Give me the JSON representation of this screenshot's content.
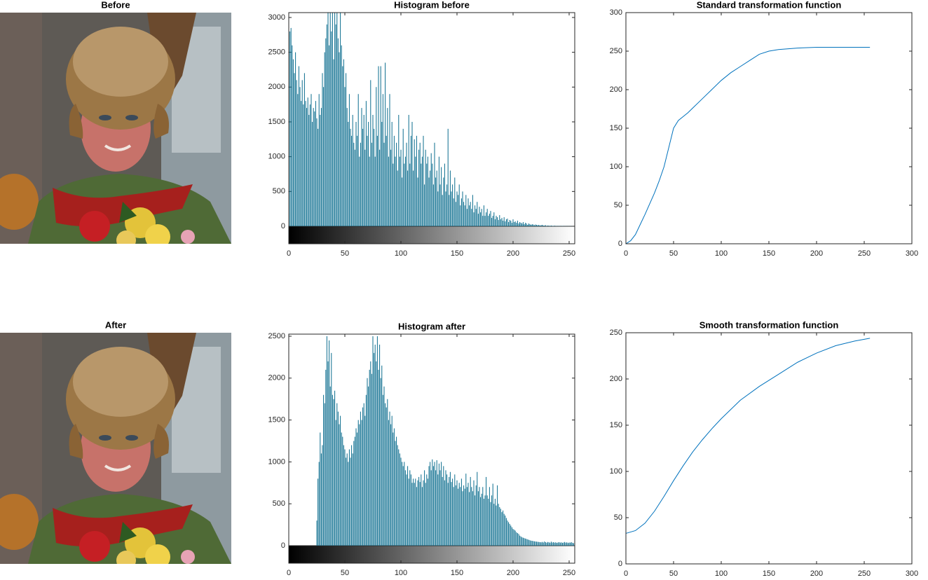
{
  "chart_data": [
    {
      "type": "image",
      "title": "Before"
    },
    {
      "type": "stem",
      "title": "Histogram before",
      "color": "#0b6d8e",
      "x": [
        0,
        1,
        2,
        3,
        4,
        5,
        6,
        7,
        8,
        9,
        10,
        11,
        12,
        13,
        14,
        15,
        16,
        17,
        18,
        19,
        20,
        21,
        22,
        23,
        24,
        25,
        26,
        27,
        28,
        29,
        30,
        31,
        32,
        33,
        34,
        35,
        36,
        37,
        38,
        39,
        40,
        41,
        42,
        43,
        44,
        45,
        46,
        47,
        48,
        49,
        50,
        51,
        52,
        53,
        54,
        55,
        56,
        57,
        58,
        59,
        60,
        61,
        62,
        63,
        64,
        65,
        66,
        67,
        68,
        69,
        70,
        71,
        72,
        73,
        74,
        75,
        76,
        77,
        78,
        79,
        80,
        81,
        82,
        83,
        84,
        85,
        86,
        87,
        88,
        89,
        90,
        91,
        92,
        93,
        94,
        95,
        96,
        97,
        98,
        99,
        100,
        101,
        102,
        103,
        104,
        105,
        106,
        107,
        108,
        109,
        110,
        111,
        112,
        113,
        114,
        115,
        116,
        117,
        118,
        119,
        120,
        121,
        122,
        123,
        124,
        125,
        126,
        127,
        128,
        129,
        130,
        131,
        132,
        133,
        134,
        135,
        136,
        137,
        138,
        139,
        140,
        141,
        142,
        143,
        144,
        145,
        146,
        147,
        148,
        149,
        150,
        151,
        152,
        153,
        154,
        155,
        156,
        157,
        158,
        159,
        160,
        161,
        162,
        163,
        164,
        165,
        166,
        167,
        168,
        169,
        170,
        171,
        172,
        173,
        174,
        175,
        176,
        177,
        178,
        179,
        180,
        181,
        182,
        183,
        184,
        185,
        186,
        187,
        188,
        189,
        190,
        191,
        192,
        193,
        194,
        195,
        196,
        197,
        198,
        199,
        200,
        201,
        202,
        203,
        204,
        205,
        206,
        207,
        208,
        209,
        210,
        211,
        212,
        213,
        214,
        215,
        216,
        217,
        218,
        219,
        220,
        221,
        222,
        223,
        224,
        225,
        226,
        227,
        228,
        229,
        230,
        231,
        232,
        233,
        234,
        235,
        236,
        237,
        238,
        239,
        240,
        241,
        242,
        243,
        244,
        245,
        246,
        247,
        248,
        249,
        250,
        251,
        252,
        253,
        254,
        255
      ],
      "values": [
        2950,
        2800,
        2850,
        2600,
        2400,
        2200,
        2500,
        2100,
        1900,
        2300,
        2000,
        1800,
        2100,
        1750,
        2200,
        1800,
        1700,
        1850,
        1600,
        1750,
        1900,
        1500,
        1700,
        1650,
        1800,
        1550,
        1400,
        1900,
        1600,
        1700,
        2200,
        2000,
        2500,
        2700,
        2900,
        3070,
        2600,
        3070,
        2800,
        3070,
        2400,
        3070,
        2900,
        3070,
        2700,
        2500,
        3070,
        2600,
        2300,
        2400,
        2000,
        2200,
        1700,
        1500,
        1900,
        1400,
        1300,
        1600,
        1200,
        1100,
        1500,
        1300,
        1900,
        1000,
        1200,
        1700,
        1400,
        1600,
        1100,
        1800,
        1300,
        1500,
        1000,
        2100,
        1200,
        1600,
        1400,
        1000,
        2000,
        1300,
        2300,
        1100,
        2300,
        1500,
        1900,
        1200,
        2350,
        1300,
        1700,
        1000,
        1900,
        1100,
        1500,
        900,
        1300,
        1000,
        1200,
        800,
        1600,
        1000,
        1100,
        700,
        1400,
        900,
        1000,
        1200,
        800,
        1600,
        900,
        1300,
        1500,
        800,
        1250,
        1000,
        1300,
        700,
        1100,
        1200,
        900,
        1000,
        1300,
        600,
        1100,
        900,
        1000,
        700,
        800,
        1050,
        900,
        600,
        1200,
        700,
        800,
        500,
        1000,
        600,
        850,
        450,
        700,
        900,
        500,
        600,
        1400,
        450,
        800,
        500,
        600,
        400,
        700,
        350,
        500,
        450,
        600,
        300,
        400,
        500,
        350,
        300,
        450,
        250,
        400,
        300,
        350,
        250,
        450,
        200,
        300,
        250,
        350,
        180,
        280,
        200,
        250,
        150,
        300,
        150,
        200,
        250,
        150,
        180,
        220,
        120,
        150,
        200,
        100,
        150,
        130,
        90,
        160,
        100,
        120,
        80,
        130,
        70,
        100,
        110,
        60,
        90,
        80,
        50,
        100,
        60,
        70,
        50,
        80,
        40,
        60,
        50,
        40,
        60,
        30,
        50,
        40,
        20,
        40,
        30,
        20,
        30,
        25,
        15,
        25,
        20,
        15,
        20,
        10,
        15,
        20,
        10,
        10,
        15,
        5,
        10,
        8,
        5,
        10,
        5,
        5,
        8,
        3,
        5,
        3,
        5,
        2,
        3,
        4,
        2,
        2,
        3,
        1,
        2,
        1,
        2,
        1,
        1,
        0,
        0
      ],
      "xlim": [
        0,
        255
      ],
      "xticks": [
        0,
        50,
        100,
        150,
        200,
        250
      ],
      "ylim": [
        0,
        3070
      ],
      "yticks": [
        0,
        500,
        1000,
        1500,
        2000,
        2500,
        3000
      ]
    },
    {
      "type": "line",
      "title": "Standard transformation function",
      "color": "#0072bd",
      "x": [
        0,
        5,
        10,
        15,
        20,
        25,
        30,
        35,
        40,
        45,
        50,
        55,
        60,
        65,
        70,
        80,
        90,
        100,
        110,
        120,
        130,
        140,
        150,
        160,
        180,
        200,
        220,
        240,
        256
      ],
      "values": [
        0,
        4,
        12,
        25,
        38,
        52,
        66,
        82,
        100,
        125,
        150,
        160,
        165,
        170,
        176,
        188,
        200,
        212,
        222,
        230,
        238,
        246,
        250,
        252,
        254,
        255,
        255,
        255,
        255
      ],
      "xlim": [
        0,
        300
      ],
      "xticks": [
        0,
        50,
        100,
        150,
        200,
        250,
        300
      ],
      "ylim": [
        0,
        300
      ],
      "yticks": [
        0,
        50,
        100,
        150,
        200,
        250,
        300
      ]
    },
    {
      "type": "image",
      "title": "After"
    },
    {
      "type": "stem",
      "title": "Histogram after",
      "color": "#0b6d8e",
      "x": [
        0,
        1,
        2,
        3,
        4,
        5,
        6,
        7,
        8,
        9,
        10,
        11,
        12,
        13,
        14,
        15,
        16,
        17,
        18,
        19,
        20,
        21,
        22,
        23,
        24,
        25,
        26,
        27,
        28,
        29,
        30,
        31,
        32,
        33,
        34,
        35,
        36,
        37,
        38,
        39,
        40,
        41,
        42,
        43,
        44,
        45,
        46,
        47,
        48,
        49,
        50,
        51,
        52,
        53,
        54,
        55,
        56,
        57,
        58,
        59,
        60,
        61,
        62,
        63,
        64,
        65,
        66,
        67,
        68,
        69,
        70,
        71,
        72,
        73,
        74,
        75,
        76,
        77,
        78,
        79,
        80,
        81,
        82,
        83,
        84,
        85,
        86,
        87,
        88,
        89,
        90,
        91,
        92,
        93,
        94,
        95,
        96,
        97,
        98,
        99,
        100,
        101,
        102,
        103,
        104,
        105,
        106,
        107,
        108,
        109,
        110,
        111,
        112,
        113,
        114,
        115,
        116,
        117,
        118,
        119,
        120,
        121,
        122,
        123,
        124,
        125,
        126,
        127,
        128,
        129,
        130,
        131,
        132,
        133,
        134,
        135,
        136,
        137,
        138,
        139,
        140,
        141,
        142,
        143,
        144,
        145,
        146,
        147,
        148,
        149,
        150,
        151,
        152,
        153,
        154,
        155,
        156,
        157,
        158,
        159,
        160,
        161,
        162,
        163,
        164,
        165,
        166,
        167,
        168,
        169,
        170,
        171,
        172,
        173,
        174,
        175,
        176,
        177,
        178,
        179,
        180,
        181,
        182,
        183,
        184,
        185,
        186,
        187,
        188,
        189,
        190,
        191,
        192,
        193,
        194,
        195,
        196,
        197,
        198,
        199,
        200,
        201,
        202,
        203,
        204,
        205,
        206,
        207,
        208,
        209,
        210,
        211,
        212,
        213,
        214,
        215,
        216,
        217,
        218,
        219,
        220,
        221,
        222,
        223,
        224,
        225,
        226,
        227,
        228,
        229,
        230,
        231,
        232,
        233,
        234,
        235,
        236,
        237,
        238,
        239,
        240,
        241,
        242,
        243,
        244,
        245,
        246,
        247,
        248,
        249,
        250,
        251,
        252,
        253,
        254,
        255
      ],
      "values": [
        0,
        0,
        0,
        0,
        0,
        0,
        0,
        0,
        0,
        0,
        0,
        0,
        0,
        0,
        0,
        0,
        0,
        0,
        0,
        0,
        0,
        0,
        0,
        0,
        0,
        300,
        800,
        1000,
        1350,
        1100,
        1200,
        1800,
        1700,
        2100,
        2500,
        2200,
        2450,
        1900,
        2300,
        1800,
        1750,
        1850,
        1500,
        1700,
        1600,
        1450,
        1550,
        1350,
        1300,
        1200,
        1150,
        1050,
        1100,
        1000,
        1150,
        1050,
        1200,
        1100,
        1250,
        1300,
        1400,
        1350,
        1500,
        1450,
        1600,
        1500,
        1650,
        1700,
        1550,
        1800,
        2000,
        1900,
        2100,
        2200,
        2050,
        2500,
        2300,
        2400,
        2200,
        2500,
        2100,
        2400,
        2000,
        2150,
        1800,
        1900,
        1700,
        1650,
        1750,
        1500,
        1600,
        1450,
        1550,
        1350,
        1400,
        1250,
        1300,
        1200,
        1150,
        1100,
        1050,
        1000,
        950,
        1000,
        900,
        850,
        950,
        800,
        900,
        850,
        750,
        800,
        750,
        800,
        700,
        780,
        820,
        760,
        850,
        700,
        780,
        900,
        750,
        850,
        800,
        950,
        1000,
        900,
        1030,
        950,
        1000,
        900,
        1020,
        850,
        980,
        900,
        1000,
        820,
        950,
        780,
        900,
        850,
        750,
        820,
        880,
        760,
        800,
        700,
        850,
        720,
        780,
        680,
        750,
        700,
        800,
        650,
        720,
        680,
        860,
        700,
        750,
        640,
        820,
        700,
        650,
        780,
        600,
        720,
        880,
        650,
        700,
        580,
        620,
        700,
        560,
        600,
        820,
        600,
        560,
        700,
        520,
        600,
        740,
        500,
        560,
        480,
        720,
        500,
        460,
        440,
        400,
        420,
        380,
        360,
        330,
        300,
        280,
        260,
        240,
        220,
        200,
        190,
        180,
        160,
        150,
        140,
        120,
        110,
        100,
        95,
        90,
        85,
        80,
        75,
        70,
        65,
        60,
        58,
        55,
        52,
        50,
        48,
        46,
        44,
        42,
        40,
        45,
        38,
        50,
        42,
        36,
        44,
        40,
        35,
        48,
        38,
        42,
        36,
        40,
        34,
        38,
        42,
        36,
        40,
        34,
        38,
        44,
        36,
        40,
        32,
        38,
        36,
        42,
        34,
        30,
        250
      ],
      "xlim": [
        0,
        255
      ],
      "xticks": [
        0,
        50,
        100,
        150,
        200,
        250
      ],
      "ylim": [
        0,
        2525
      ],
      "yticks": [
        0,
        500,
        1000,
        1500,
        2000,
        2500
      ]
    },
    {
      "type": "line",
      "title": "Smooth transformation function",
      "color": "#0072bd",
      "x": [
        0,
        10,
        20,
        30,
        40,
        50,
        60,
        70,
        80,
        90,
        100,
        120,
        140,
        160,
        180,
        200,
        220,
        240,
        256
      ],
      "values": [
        33,
        36,
        44,
        57,
        73,
        90,
        106,
        121,
        134,
        146,
        157,
        177,
        192,
        205,
        218,
        228,
        236,
        241,
        244
      ],
      "xlim": [
        0,
        300
      ],
      "xticks": [
        0,
        50,
        100,
        150,
        200,
        250,
        300
      ],
      "ylim": [
        0,
        250
      ],
      "yticks": [
        0,
        50,
        100,
        150,
        200,
        250
      ]
    }
  ]
}
